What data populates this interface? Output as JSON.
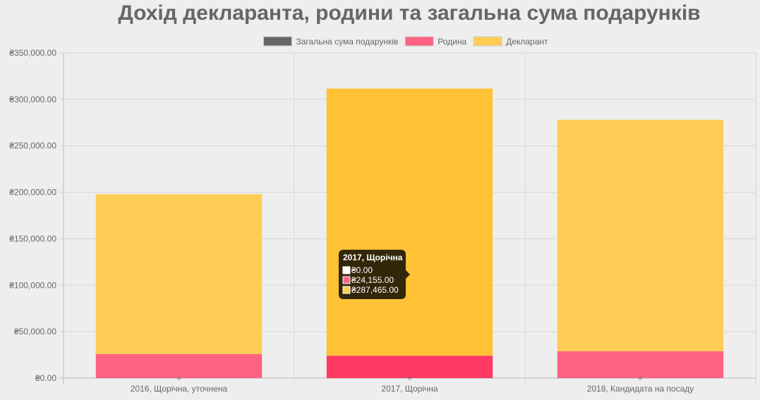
{
  "chart_data": {
    "type": "bar",
    "stacked": true,
    "title": "Дохід декларанта, родини та загальна сума подарунків",
    "categories": [
      "2016, Щорічна, уточнена",
      "2017, Щорічна",
      "2018, Кандидата на посаду"
    ],
    "series": [
      {
        "name": "Загальна сума подарунків",
        "color": "#666666",
        "values": [
          0,
          0,
          0
        ]
      },
      {
        "name": "Родина",
        "color": "#ff6384",
        "values": [
          26000,
          24155,
          29000
        ]
      },
      {
        "name": "Декларант",
        "color": "#ffcd56",
        "values": [
          172000,
          287465,
          249000
        ]
      }
    ],
    "y_ticks": [
      "₴0.00",
      "₴50,000.00",
      "₴100,000.00",
      "₴150,000.00",
      "₴200,000.00",
      "₴250,000.00",
      "₴300,000.00",
      "₴350,000.00"
    ],
    "ylim": [
      0,
      350000
    ],
    "grid": true,
    "legend_position": "top",
    "tooltip": {
      "title": "2017, Щорічна",
      "category_index": 1,
      "rows": [
        {
          "text": "₴0.00",
          "color": "#ffffff"
        },
        {
          "text": "₴24,155.00",
          "color": "#ff6384"
        },
        {
          "text": "₴287,465.00",
          "color": "#ffcd56"
        }
      ]
    }
  }
}
